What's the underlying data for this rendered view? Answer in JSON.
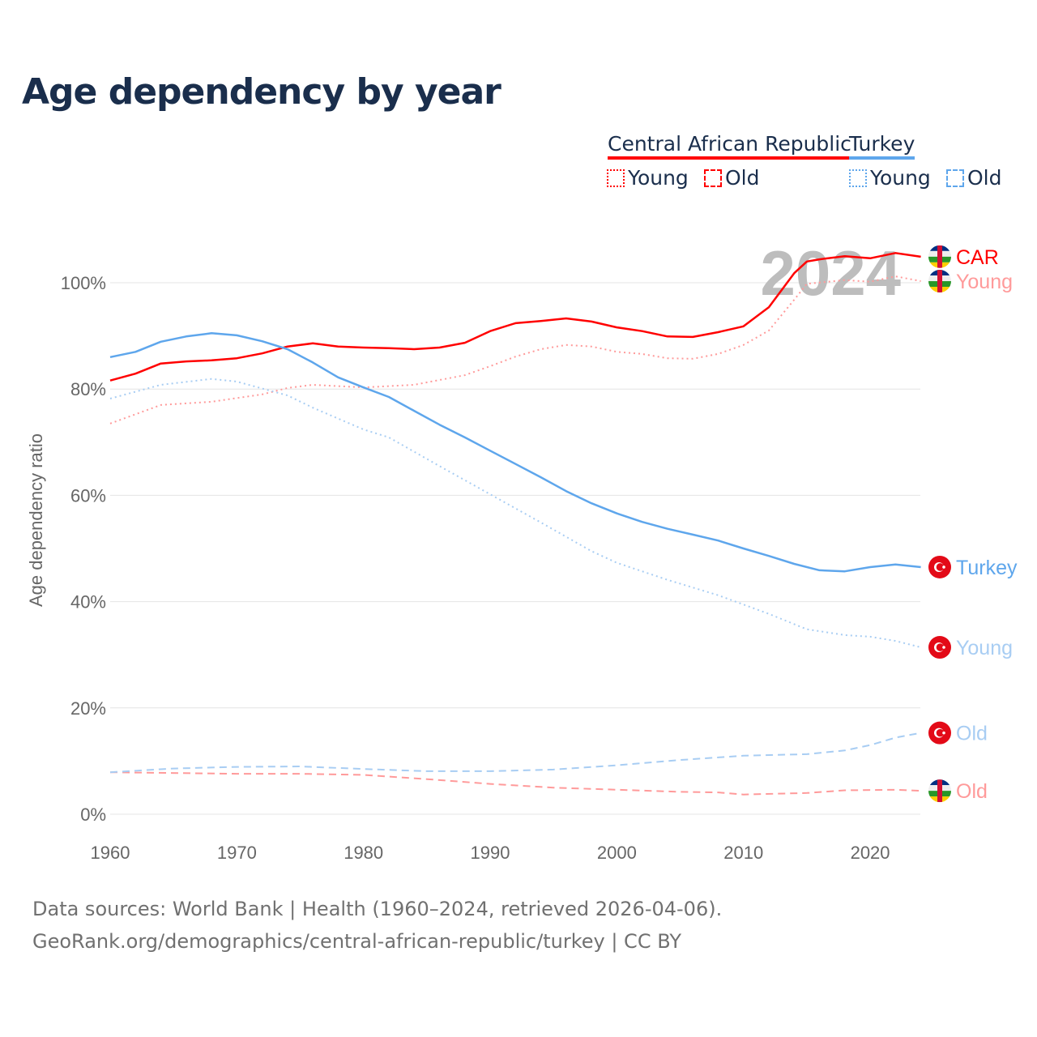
{
  "chart_data": {
    "type": "line",
    "title": "Age dependency by year",
    "ylabel": "Age dependency ratio",
    "xlabel": "",
    "xlim": [
      1960,
      2024
    ],
    "ylim": [
      0,
      110
    ],
    "x_ticks": [
      "1960",
      "1970",
      "1980",
      "1990",
      "2000",
      "2010",
      "2020"
    ],
    "y_ticks": [
      "0%",
      "20%",
      "40%",
      "60%",
      "80%",
      "100%"
    ],
    "year_watermark": "2024",
    "legend": {
      "countries": [
        {
          "name": "Central African Republic",
          "color": "#ff0000"
        },
        {
          "name": "Turkey",
          "color": "#5ea6ec"
        }
      ],
      "young_label": "Young",
      "old_label": "Old"
    },
    "series": [
      {
        "name": "Central African Republic",
        "end_label": "CAR",
        "kind": "total",
        "color": "#ff0000",
        "flag": "car",
        "x": [
          1960,
          1962,
          1964,
          1966,
          1968,
          1970,
          1972,
          1974,
          1976,
          1978,
          1980,
          1982,
          1984,
          1986,
          1988,
          1990,
          1992,
          1994,
          1996,
          1998,
          2000,
          2002,
          2004,
          2006,
          2008,
          2010,
          2012,
          2014,
          2015,
          2016,
          2018,
          2020,
          2022,
          2024
        ],
        "y": [
          81.6,
          82.9,
          84.8,
          85.2,
          85.4,
          85.8,
          86.7,
          88.0,
          88.6,
          88.0,
          87.8,
          87.7,
          87.5,
          87.8,
          88.7,
          90.9,
          92.4,
          92.8,
          93.3,
          92.7,
          91.6,
          90.9,
          89.9,
          89.8,
          90.7,
          91.8,
          95.4,
          101.8,
          104.0,
          104.4,
          105.0,
          104.6,
          105.6,
          104.9
        ]
      },
      {
        "name": "Central African Republic Young",
        "end_label": "Young",
        "kind": "young",
        "color": "#ff9a9a",
        "flag": "car",
        "x": [
          1960,
          1964,
          1968,
          1972,
          1974,
          1976,
          1980,
          1984,
          1988,
          1990,
          1992,
          1994,
          1996,
          1998,
          2000,
          2002,
          2004,
          2006,
          2008,
          2010,
          2012,
          2014,
          2015,
          2018,
          2020,
          2022,
          2024
        ],
        "y": [
          73.5,
          77.0,
          77.6,
          79.0,
          80.2,
          80.8,
          80.3,
          80.8,
          82.6,
          84.3,
          86.1,
          87.5,
          88.3,
          88.0,
          87.0,
          86.6,
          85.8,
          85.7,
          86.6,
          88.3,
          91.0,
          96.8,
          99.8,
          100.5,
          100.2,
          101.2,
          100.3
        ]
      },
      {
        "name": "Central African Republic Old",
        "end_label": "Old",
        "kind": "old",
        "color": "#ff9a9a",
        "flag": "car",
        "x": [
          1960,
          1970,
          1975,
          1980,
          1985,
          1990,
          1995,
          2000,
          2005,
          2008,
          2010,
          2015,
          2018,
          2022,
          2024
        ],
        "y": [
          7.9,
          7.6,
          7.6,
          7.4,
          6.6,
          5.7,
          5.0,
          4.6,
          4.2,
          4.1,
          3.7,
          4.0,
          4.5,
          4.6,
          4.4
        ]
      },
      {
        "name": "Turkey",
        "end_label": "Turkey",
        "kind": "total",
        "color": "#5ea6ec",
        "flag": "tr",
        "x": [
          1960,
          1962,
          1964,
          1966,
          1968,
          1970,
          1972,
          1974,
          1976,
          1978,
          1980,
          1982,
          1984,
          1986,
          1988,
          1990,
          1992,
          1994,
          1996,
          1998,
          2000,
          2002,
          2004,
          2006,
          2008,
          2010,
          2012,
          2014,
          2016,
          2018,
          2020,
          2022,
          2024
        ],
        "y": [
          86.0,
          87.0,
          88.9,
          89.9,
          90.5,
          90.1,
          89.0,
          87.5,
          85.0,
          82.2,
          80.3,
          78.5,
          75.9,
          73.3,
          70.9,
          68.4,
          65.9,
          63.4,
          60.8,
          58.5,
          56.6,
          55.0,
          53.7,
          52.6,
          51.5,
          50.0,
          48.6,
          47.1,
          45.9,
          45.7,
          46.5,
          47.0,
          46.5
        ]
      },
      {
        "name": "Turkey Young",
        "end_label": "Young",
        "kind": "young",
        "color": "#a8cdf3",
        "flag": "tr",
        "x": [
          1960,
          1964,
          1968,
          1970,
          1974,
          1976,
          1980,
          1982,
          1986,
          1990,
          1994,
          1998,
          2000,
          2004,
          2008,
          2012,
          2015,
          2018,
          2020,
          2022,
          2024
        ],
        "y": [
          78.2,
          80.8,
          81.9,
          81.4,
          78.8,
          76.5,
          72.4,
          70.9,
          65.5,
          60.2,
          54.9,
          49.5,
          47.3,
          44.1,
          41.2,
          37.7,
          34.8,
          33.7,
          33.4,
          32.6,
          31.4
        ]
      },
      {
        "name": "Turkey Old",
        "end_label": "Old",
        "kind": "old",
        "color": "#a8cdf3",
        "flag": "tr",
        "x": [
          1960,
          1965,
          1970,
          1975,
          1980,
          1985,
          1990,
          1995,
          2000,
          2005,
          2010,
          2015,
          2018,
          2020,
          2022,
          2024
        ],
        "y": [
          7.9,
          8.6,
          8.9,
          9.0,
          8.5,
          8.1,
          8.1,
          8.4,
          9.2,
          10.2,
          11.0,
          11.3,
          12.0,
          13.0,
          14.4,
          15.3
        ]
      }
    ]
  },
  "footer": {
    "source": "Data sources: World Bank | Health (1960–2024, retrieved 2026-04-06).",
    "url": "GeoRank.org/demographics/central-african-republic/turkey | CC BY"
  }
}
